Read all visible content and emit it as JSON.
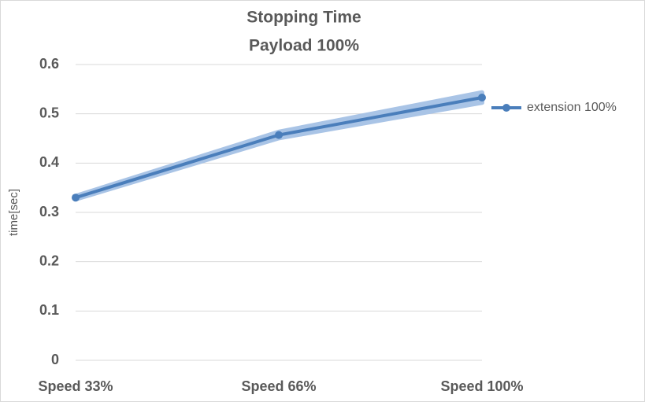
{
  "chart_data": {
    "type": "line",
    "title": [
      "Stopping Time",
      "Payload 100%"
    ],
    "y_label": "time[sec]",
    "categories": [
      "Speed 33%",
      "Speed 66%",
      "Speed 100%"
    ],
    "series": [
      {
        "name": "extension 100%",
        "color": "#4a7ebb",
        "band_color": "#a9c4e6",
        "values": [
          0.33,
          0.457,
          0.533
        ],
        "errors": [
          0.003,
          0.006,
          0.01
        ]
      }
    ],
    "ylim": [
      0,
      0.6
    ],
    "yticks": [
      0,
      0.1,
      0.2,
      0.3,
      0.4,
      0.5,
      0.6
    ],
    "grid": true,
    "legend": "right"
  }
}
